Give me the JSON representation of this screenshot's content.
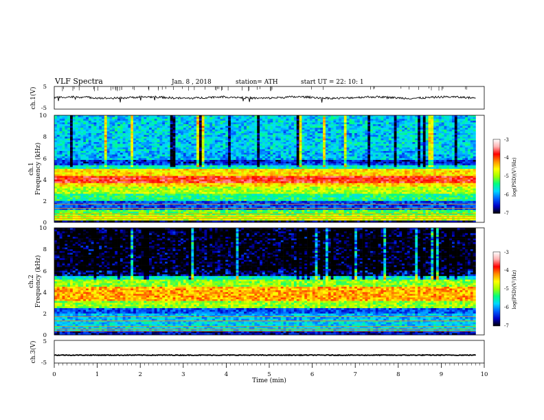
{
  "header": {
    "title": "VLF  Spectra",
    "date": "Jan.  8  , 2018",
    "station": "station= ATH",
    "start_ut": "start  UT  =    22: 10: 1"
  },
  "colorbar": {
    "label": "log(PSD)(V²/Hz)",
    "ticks": [
      "-3",
      "-4",
      "-5",
      "-6",
      "-7"
    ],
    "colors": [
      "#000000",
      "#0000c8",
      "#0060ff",
      "#00d8ff",
      "#00ff80",
      "#a0ff00",
      "#ffff00",
      "#ff9000",
      "#ff0000",
      "#ffb0b0",
      "#ffffff"
    ]
  },
  "chart_data": [
    {
      "type": "line",
      "name": "ch1-waveform",
      "ylabel": "ch.1(V)",
      "ylim": [
        -5,
        5
      ],
      "yticks": [
        "5",
        "-5"
      ],
      "xlim": [
        0,
        10
      ],
      "mean_level": 0.1,
      "color": "#000000"
    },
    {
      "type": "heatmap",
      "name": "ch1-spectrogram",
      "ylabel": "ch.1\nFrequency  (kHz)",
      "xlim": [
        0,
        10
      ],
      "ylim": [
        0,
        10
      ],
      "yticks": [
        "0",
        "2",
        "4",
        "6",
        "8",
        "10"
      ],
      "data_end_min": 9.8,
      "bands": [
        {
          "from": 0.0,
          "to": 0.25,
          "level": -6.8
        },
        {
          "from": 0.25,
          "to": 0.6,
          "level": -4.8
        },
        {
          "from": 0.6,
          "to": 1.1,
          "level": -5.2
        },
        {
          "from": 1.1,
          "to": 2.0,
          "level": -6.3
        },
        {
          "from": 2.0,
          "to": 2.6,
          "level": -5.4
        },
        {
          "from": 2.6,
          "to": 3.3,
          "level": -4.9
        },
        {
          "from": 3.3,
          "to": 3.7,
          "level": -4.5
        },
        {
          "from": 3.7,
          "to": 4.3,
          "level": -3.8
        },
        {
          "from": 4.3,
          "to": 5.0,
          "level": -4.5
        },
        {
          "from": 5.0,
          "to": 5.4,
          "level": -5.6
        },
        {
          "from": 5.4,
          "to": 5.9,
          "level": -6.3
        },
        {
          "from": 5.9,
          "to": 6.7,
          "level": -5.7
        },
        {
          "from": 6.7,
          "to": 10.0,
          "level": -5.6
        }
      ]
    },
    {
      "type": "heatmap",
      "name": "ch2-spectrogram",
      "ylabel": "ch.2\nFrequency  (kHz)",
      "xlim": [
        0,
        10
      ],
      "ylim": [
        0,
        10
      ],
      "yticks": [
        "0",
        "2",
        "4",
        "6",
        "8",
        "10"
      ],
      "data_end_min": 9.8,
      "bands": [
        {
          "from": 0.0,
          "to": 0.3,
          "level": -6.6
        },
        {
          "from": 0.3,
          "to": 1.4,
          "level": -5.8
        },
        {
          "from": 1.4,
          "to": 2.0,
          "level": -5.9
        },
        {
          "from": 2.0,
          "to": 2.5,
          "level": -6.3
        },
        {
          "from": 2.5,
          "to": 3.1,
          "level": -5.0
        },
        {
          "from": 3.1,
          "to": 4.5,
          "level": -4.3
        },
        {
          "from": 4.5,
          "to": 5.2,
          "level": -5.0
        },
        {
          "from": 5.2,
          "to": 5.5,
          "level": -5.6
        },
        {
          "from": 5.5,
          "to": 6.0,
          "level": -6.3
        },
        {
          "from": 6.0,
          "to": 10.0,
          "level": -6.6
        }
      ]
    },
    {
      "type": "line",
      "name": "ch3-waveform",
      "ylabel": "ch.3(V)",
      "ylim": [
        -5,
        5
      ],
      "yticks": [
        "5",
        "-5"
      ],
      "xlim": [
        0,
        10
      ],
      "mean_level": -1.5,
      "color": "#000000"
    }
  ],
  "xaxis": {
    "label": "Time  (min)",
    "ticks": [
      "0",
      "1",
      "2",
      "3",
      "4",
      "5",
      "6",
      "7",
      "8",
      "9",
      "10"
    ]
  }
}
